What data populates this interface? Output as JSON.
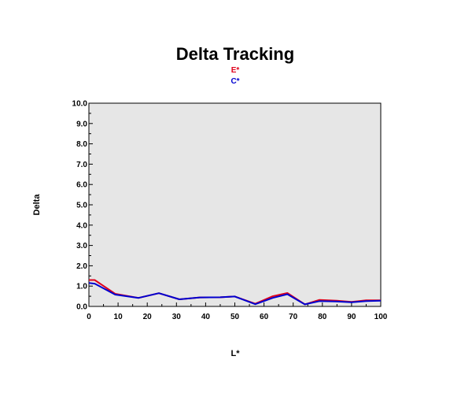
{
  "chart_data": {
    "type": "line",
    "title": "Delta Tracking",
    "xlabel": "L*",
    "ylabel": "Delta",
    "xlim": [
      0,
      100
    ],
    "ylim": [
      0,
      10
    ],
    "x_ticks": [
      "0",
      "10",
      "20",
      "30",
      "40",
      "50",
      "60",
      "70",
      "80",
      "90",
      "100"
    ],
    "y_ticks": [
      "0.0",
      "1.0",
      "2.0",
      "3.0",
      "4.0",
      "5.0",
      "6.0",
      "7.0",
      "8.0",
      "9.0",
      "10.0"
    ],
    "grid": false,
    "legend": "top-center",
    "plot_background": "#e6e6e6",
    "series": [
      {
        "name": "E*",
        "color": "#e0001b",
        "x": [
          0,
          2,
          9,
          17,
          24,
          31,
          38,
          45,
          50,
          57,
          63,
          68,
          74,
          79,
          85,
          90,
          95,
          100
        ],
        "y": [
          1.3,
          1.3,
          0.62,
          0.42,
          0.65,
          0.35,
          0.44,
          0.45,
          0.49,
          0.13,
          0.5,
          0.66,
          0.1,
          0.32,
          0.28,
          0.22,
          0.3,
          0.3
        ]
      },
      {
        "name": "C*",
        "color": "#0000d0",
        "x": [
          0,
          2,
          9,
          17,
          24,
          31,
          38,
          45,
          50,
          57,
          63,
          68,
          74,
          79,
          85,
          90,
          95,
          100
        ],
        "y": [
          1.15,
          1.12,
          0.58,
          0.42,
          0.65,
          0.35,
          0.44,
          0.45,
          0.49,
          0.11,
          0.42,
          0.6,
          0.1,
          0.26,
          0.24,
          0.2,
          0.26,
          0.28
        ]
      }
    ]
  }
}
